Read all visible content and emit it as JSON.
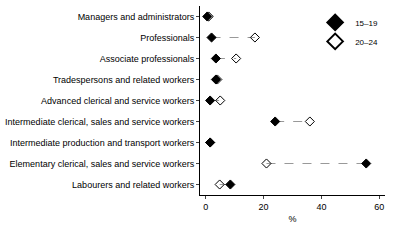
{
  "chart_data": {
    "type": "scatter",
    "orientation": "horizontal",
    "categories": [
      "Managers and administrators",
      "Professionals",
      "Associate professionals",
      "Tradespersons and related workers",
      "Advanced clerical and service workers",
      "Intermediate clerical, sales and service workers",
      "Intermediate production and transport workers",
      "Elementary clerical, sales and service workers",
      "Labourers and related workers"
    ],
    "series": [
      {
        "name": "15–19",
        "color": "#000000",
        "marker": "diamond",
        "values": [
          0.5,
          2,
          3.5,
          3.5,
          1.5,
          24,
          1.5,
          55.5,
          8.5
        ]
      },
      {
        "name": "20–24",
        "color": "#000000",
        "marker": "diamond-open",
        "values": [
          1,
          17,
          10.5,
          4,
          5,
          36,
          1.5,
          21,
          4.8
        ]
      }
    ],
    "xlabel": "%",
    "xlim": [
      -2,
      62
    ],
    "xticks": [
      0,
      20,
      40,
      60
    ],
    "line_style": "dash",
    "grid": false,
    "legend": "top right"
  }
}
